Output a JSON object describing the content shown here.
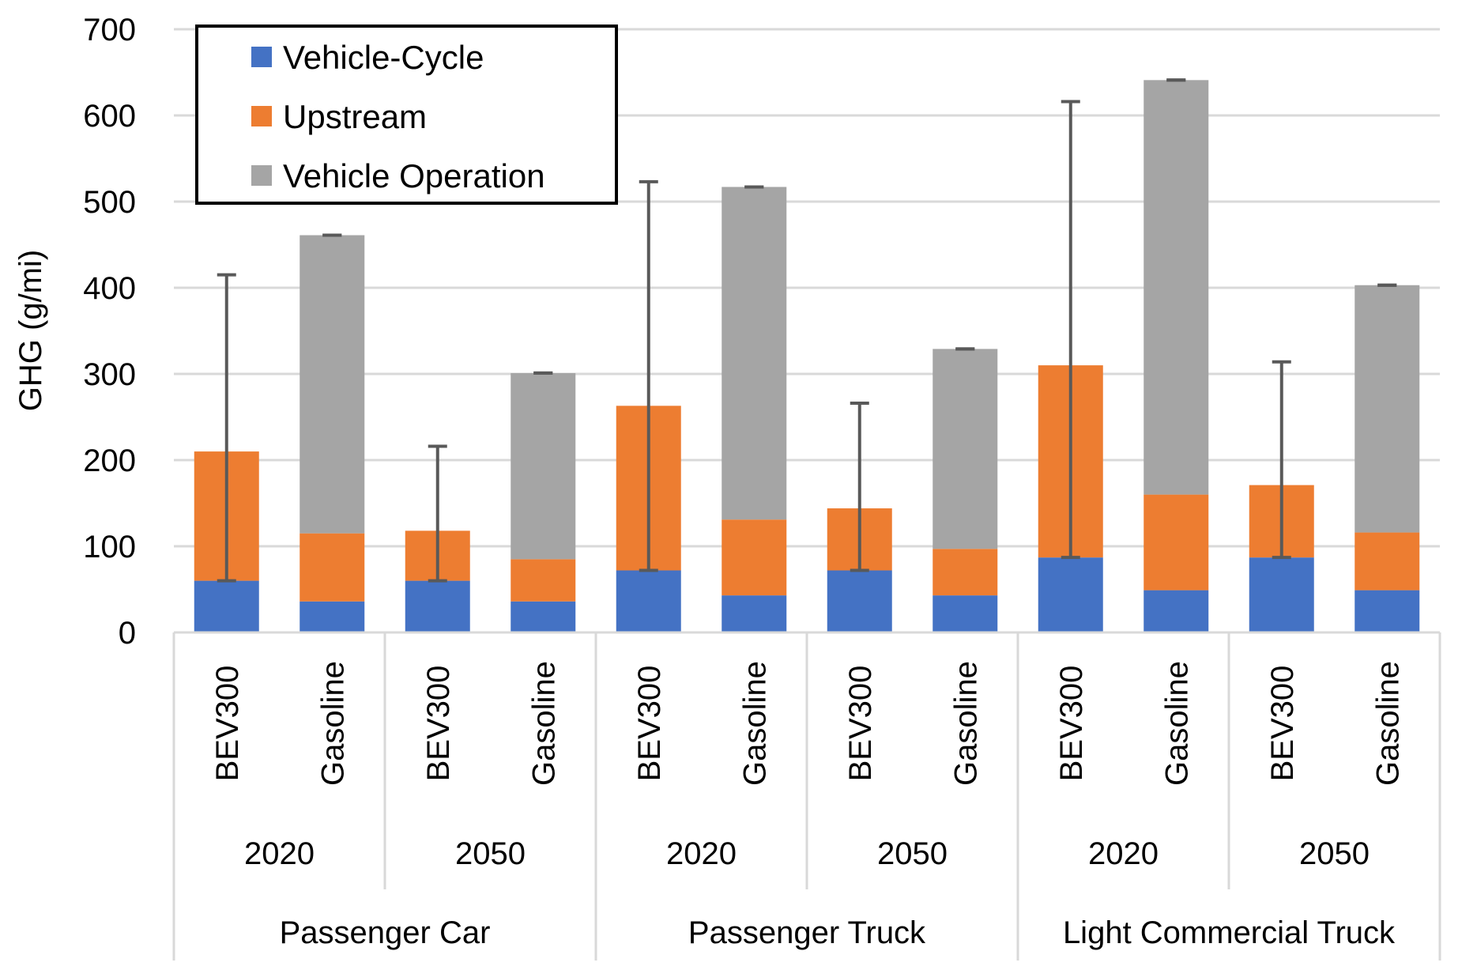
{
  "chart_data": {
    "type": "bar",
    "stacked": true,
    "ylabel": "GHG (g/mi)",
    "xlabel": "",
    "ylim": [
      0,
      700
    ],
    "yticks": [
      0,
      100,
      200,
      300,
      400,
      500,
      600,
      700
    ],
    "grid": true,
    "legend_position": "top-left",
    "categories": [
      {
        "label": "BEV300",
        "year": "2020",
        "group": "Passenger Car"
      },
      {
        "label": "Gasoline",
        "year": "2020",
        "group": "Passenger Car"
      },
      {
        "label": "BEV300",
        "year": "2050",
        "group": "Passenger Car"
      },
      {
        "label": "Gasoline",
        "year": "2050",
        "group": "Passenger Car"
      },
      {
        "label": "BEV300",
        "year": "2020",
        "group": "Passenger Truck"
      },
      {
        "label": "Gasoline",
        "year": "2020",
        "group": "Passenger Truck"
      },
      {
        "label": "BEV300",
        "year": "2050",
        "group": "Passenger Truck"
      },
      {
        "label": "Gasoline",
        "year": "2050",
        "group": "Passenger Truck"
      },
      {
        "label": "BEV300",
        "year": "2020",
        "group": "Light Commercial Truck"
      },
      {
        "label": "Gasoline",
        "year": "2020",
        "group": "Light Commercial Truck"
      },
      {
        "label": "BEV300",
        "year": "2050",
        "group": "Light Commercial Truck"
      },
      {
        "label": "Gasoline",
        "year": "2050",
        "group": "Light Commercial Truck"
      }
    ],
    "year_groups": [
      "2020",
      "2050",
      "2020",
      "2050",
      "2020",
      "2050"
    ],
    "vehicle_groups": [
      "Passenger Car",
      "Passenger Truck",
      "Light Commercial Truck"
    ],
    "series": [
      {
        "name": "Vehicle-Cycle",
        "color": "#4472C4",
        "values": [
          60,
          36,
          60,
          36,
          72,
          43,
          72,
          43,
          87,
          49,
          87,
          49
        ]
      },
      {
        "name": "Upstream",
        "color": "#ED7D31",
        "values": [
          150,
          79,
          58,
          49,
          191,
          88,
          72,
          54,
          223,
          111,
          84,
          67
        ]
      },
      {
        "name": "Vehicle Operation",
        "color": "#A5A5A5",
        "values": [
          0,
          346,
          0,
          216,
          0,
          386,
          0,
          232,
          0,
          481,
          0,
          287
        ]
      }
    ],
    "error_bars": [
      {
        "low": 60,
        "high": 415
      },
      {
        "low": 461,
        "high": 461
      },
      {
        "low": 60,
        "high": 216
      },
      {
        "low": 301,
        "high": 301
      },
      {
        "low": 72,
        "high": 523
      },
      {
        "low": 517,
        "high": 517
      },
      {
        "low": 72,
        "high": 266
      },
      {
        "low": 329,
        "high": 329
      },
      {
        "low": 87,
        "high": 616
      },
      {
        "low": 641,
        "high": 641
      },
      {
        "low": 87,
        "high": 314
      },
      {
        "low": 403,
        "high": 403
      }
    ]
  }
}
